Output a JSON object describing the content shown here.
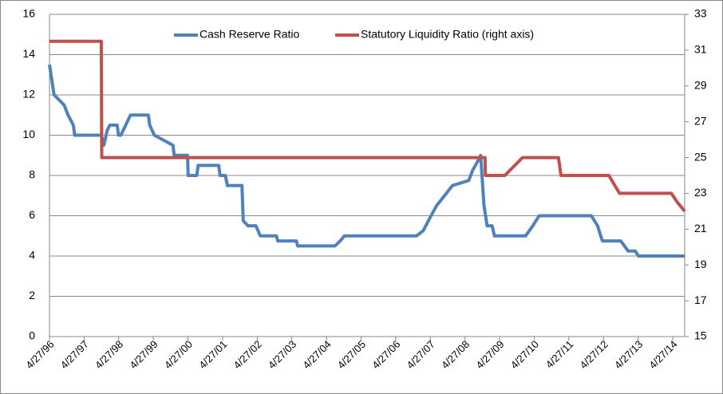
{
  "chart_data": {
    "type": "line",
    "legend": "top",
    "grid": true,
    "xlim": [
      "1996-04-27",
      "2014-08-31"
    ],
    "xticks": [
      {
        "value": "1996-04-27",
        "label": "4/27/96"
      },
      {
        "value": "1997-04-27",
        "label": "4/27/97"
      },
      {
        "value": "1998-04-27",
        "label": "4/27/98"
      },
      {
        "value": "1999-04-27",
        "label": "4/27/99"
      },
      {
        "value": "2000-04-27",
        "label": "4/27/00"
      },
      {
        "value": "2001-04-27",
        "label": "4/27/01"
      },
      {
        "value": "2002-04-27",
        "label": "4/27/02"
      },
      {
        "value": "2003-04-27",
        "label": "4/27/03"
      },
      {
        "value": "2004-04-27",
        "label": "4/27/04"
      },
      {
        "value": "2005-04-27",
        "label": "4/27/05"
      },
      {
        "value": "2006-04-27",
        "label": "4/27/06"
      },
      {
        "value": "2007-04-27",
        "label": "4/27/07"
      },
      {
        "value": "2008-04-27",
        "label": "4/27/08"
      },
      {
        "value": "2009-04-27",
        "label": "4/27/09"
      },
      {
        "value": "2010-04-27",
        "label": "4/27/10"
      },
      {
        "value": "2011-04-27",
        "label": "4/27/11"
      },
      {
        "value": "2012-04-27",
        "label": "4/27/12"
      },
      {
        "value": "2013-04-27",
        "label": "4/27/13"
      },
      {
        "value": "2014-04-27",
        "label": "4/27/14"
      }
    ],
    "ylim": [
      0,
      16
    ],
    "yticks": [
      0,
      2,
      4,
      6,
      8,
      10,
      12,
      14,
      16
    ],
    "y2lim": [
      15,
      33
    ],
    "y2ticks": [
      15,
      17,
      19,
      21,
      23,
      25,
      27,
      29,
      31,
      33
    ],
    "series": [
      {
        "name": "Cash Reserve Ratio",
        "color": "#4f81bd",
        "x": [
          "1996-04-27",
          "1996-06-15",
          "1996-09-28",
          "1996-11-09",
          "1997-01-04",
          "1997-01-18",
          "1997-10-25",
          "1997-11-22",
          "1997-12-27",
          "1998-01-24",
          "1998-04-11",
          "1998-04-25",
          "1998-05-20",
          "1998-08-29",
          "1999-03-06",
          "1999-03-20",
          "1999-05-08",
          "1999-11-20",
          "1999-12-04",
          "2000-04-22",
          "2000-04-29",
          "2000-07-29",
          "2000-08-12",
          "2001-03-17",
          "2001-03-31",
          "2001-05-26",
          "2001-06-16",
          "2001-11-17",
          "2001-12-01",
          "2002-01-19",
          "2002-04-13",
          "2002-05-31",
          "2002-11-16",
          "2002-11-30",
          "2003-06-14",
          "2003-06-28",
          "2004-07-24",
          "2004-09-18",
          "2004-11-02",
          "2006-12-02",
          "2007-02-10",
          "2007-05-05",
          "2007-07-01",
          "2007-09-24",
          "2007-12-17",
          "2008-06-05",
          "2008-07-16",
          "2008-09-13",
          "2008-10-09",
          "2008-11-13",
          "2008-12-16",
          "2009-02-06",
          "2009-03-03",
          "2010-01-26",
          "2010-04-12",
          "2010-06-18",
          "2011-12-20",
          "2012-02-24",
          "2012-04-15",
          "2012-10-26",
          "2013-01-11",
          "2013-03-27",
          "2013-04-30",
          "2014-08-31"
        ],
        "values": [
          13.5,
          12,
          11.5,
          11,
          10.5,
          10,
          10,
          9.5,
          10.25,
          10.5,
          10.5,
          10,
          10,
          11,
          11,
          10.5,
          10,
          9.5,
          9,
          9,
          8,
          8,
          8.5,
          8.5,
          8,
          8,
          7.5,
          7.5,
          5.75,
          5.5,
          5.5,
          5,
          5,
          4.75,
          4.75,
          4.5,
          4.5,
          4.75,
          5,
          5,
          5.25,
          6,
          6.5,
          7,
          7.5,
          7.75,
          8.25,
          8.75,
          9,
          6.5,
          5.5,
          5.5,
          5,
          5,
          5.5,
          6,
          6,
          5.5,
          4.75,
          4.75,
          4.25,
          4.25,
          4,
          4
        ]
      },
      {
        "name": "Statutory Liquidity Ratio (right axis)",
        "color": "#c0504d",
        "axis": "y2",
        "x": [
          "1996-04-27",
          "1997-10-25",
          "1997-10-30",
          "2008-11-24",
          "2008-11-28",
          "2009-06-21",
          "2009-12-24",
          "2011-01-07",
          "2011-02-03",
          "2012-06-22",
          "2012-10-12",
          "2014-04-12",
          "2014-06-15",
          "2014-08-31"
        ],
        "values": [
          31.5,
          31.5,
          25,
          25,
          24,
          24,
          25,
          25,
          24,
          24,
          23,
          23,
          22.5,
          22
        ]
      }
    ]
  }
}
